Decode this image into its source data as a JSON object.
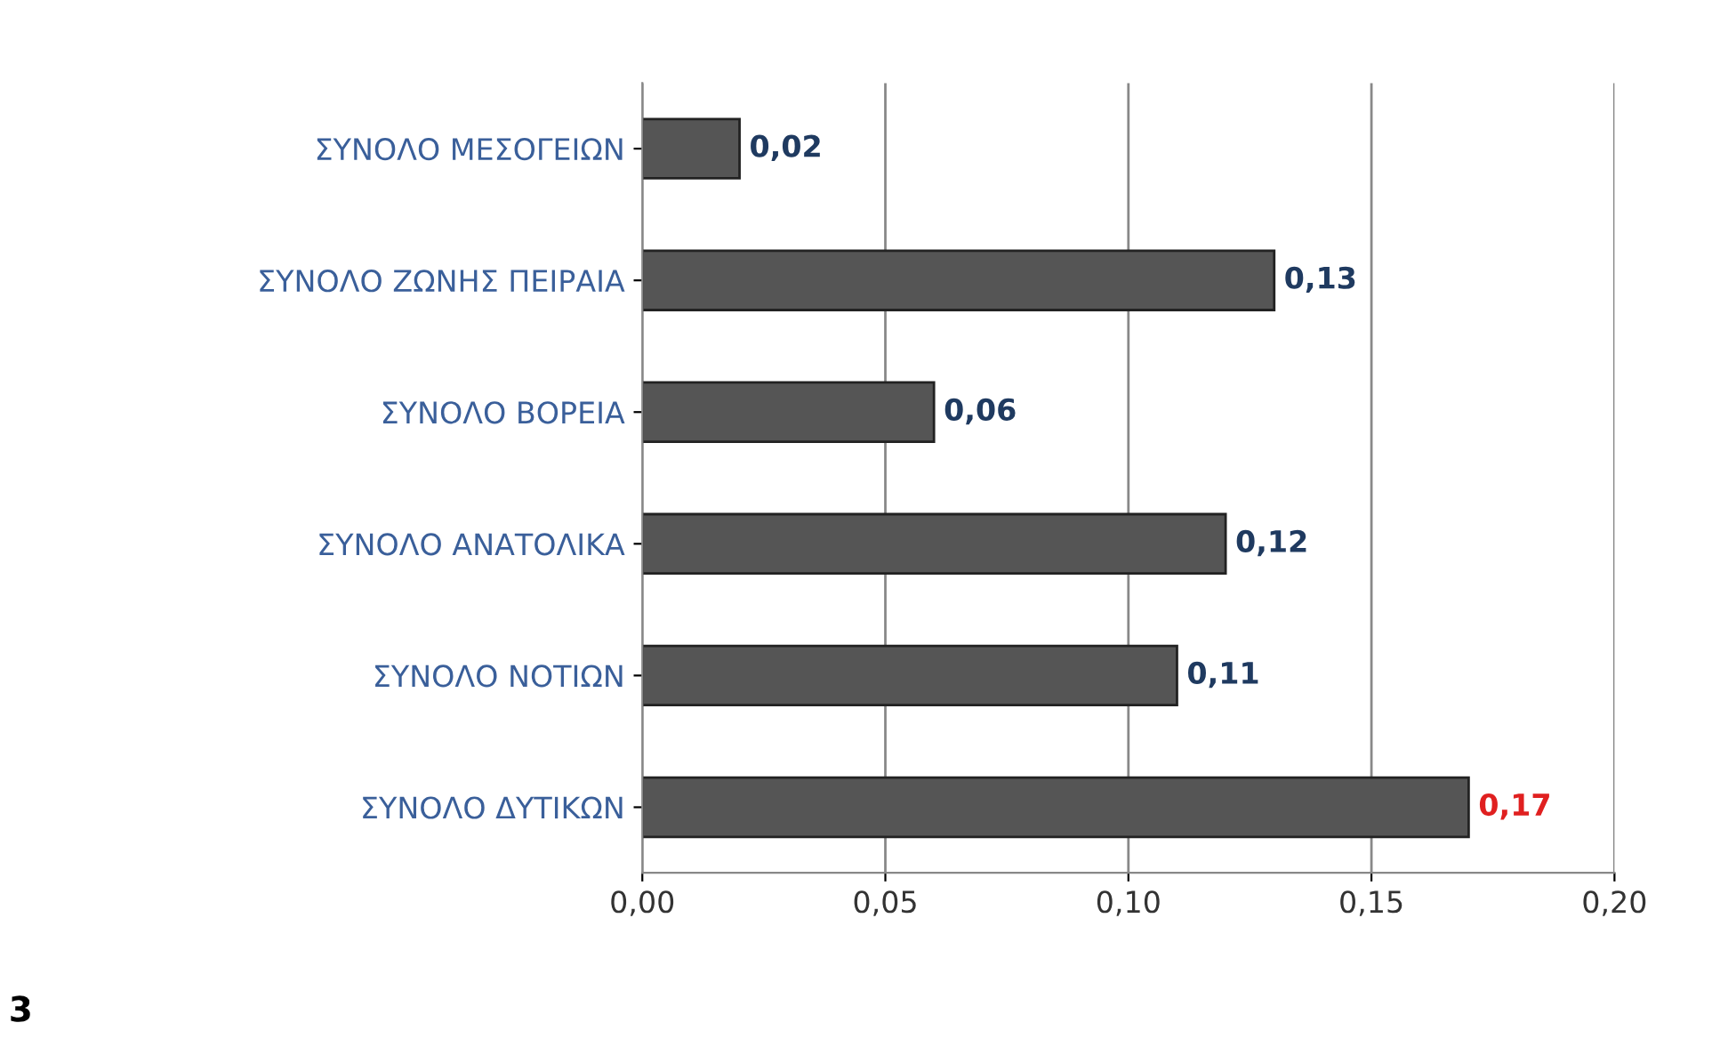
{
  "chart_data": {
    "type": "bar",
    "orientation": "horizontal",
    "categories": [
      "ΣΥΝΟΛΟ ΜΕΣΟΓΕΙΩΝ",
      "ΣΥΝΟΛΟ ΖΩΝΗΣ ΠΕΙΡΑΙΑ",
      "ΣΥΝΟΛΟ ΒΟΡΕΙΑ",
      "ΣΥΝΟΛΟ ΑΝΑΤΟΛΙΚΑ",
      "ΣΥΝΟΛΟ ΝΟΤΙΩΝ",
      "ΣΥΝΟΛΟ ΔΥΤΙΚΩΝ"
    ],
    "values": [
      0.02,
      0.13,
      0.06,
      0.12,
      0.11,
      0.17
    ],
    "value_labels": [
      "0,02",
      "0,13",
      "0,06",
      "0,12",
      "0,11",
      "0,17"
    ],
    "color": "#555555",
    "xlim": [
      0,
      0.2
    ],
    "xticks": [
      {
        "value": 0,
        "label": "0,00"
      },
      {
        "value": 0.05,
        "label": "0,05"
      },
      {
        "value": 0.1,
        "label": "0,10"
      },
      {
        "value": 0.15,
        "label": "0,15"
      },
      {
        "value": 0.2,
        "label": "0,20"
      }
    ],
    "grid": "x",
    "annotations": [
      "3"
    ]
  }
}
